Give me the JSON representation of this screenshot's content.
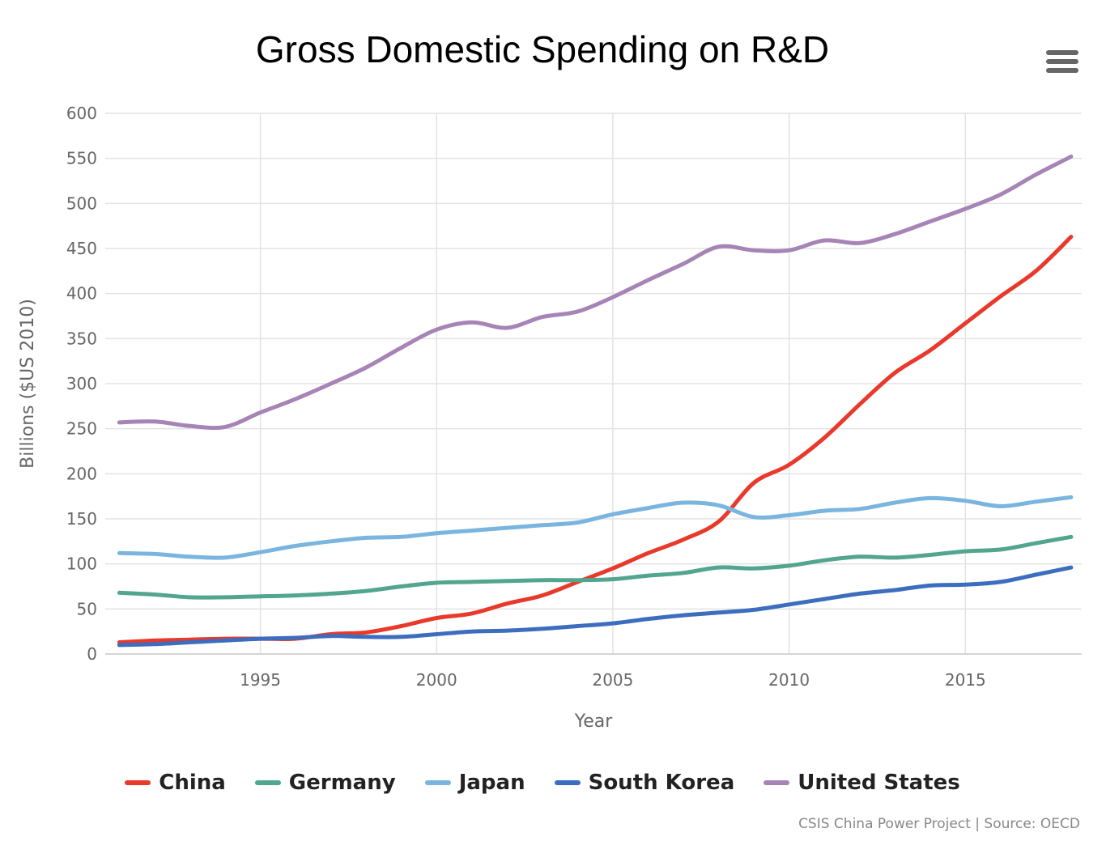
{
  "chart_data": {
    "type": "line",
    "title": "Gross Domestic Spending on R&D",
    "xlabel": "Year",
    "ylabel": "Billions ($US 2010)",
    "x": [
      1991,
      1992,
      1993,
      1994,
      1995,
      1996,
      1997,
      1998,
      1999,
      2000,
      2001,
      2002,
      2003,
      2004,
      2005,
      2006,
      2007,
      2008,
      2009,
      2010,
      2011,
      2012,
      2013,
      2014,
      2015,
      2016,
      2017,
      2018
    ],
    "xlim": [
      1990.6,
      2018.3
    ],
    "ylim": [
      0,
      600
    ],
    "xticks": [
      1995,
      2000,
      2005,
      2010,
      2015
    ],
    "yticks": [
      0,
      50,
      100,
      150,
      200,
      250,
      300,
      350,
      400,
      450,
      500,
      550,
      600
    ],
    "grid": true,
    "legend_position": "bottom",
    "series": [
      {
        "name": "China",
        "color": "#e8392b",
        "values": [
          13,
          15,
          16,
          17,
          17,
          17,
          22,
          24,
          31,
          40,
          45,
          56,
          65,
          80,
          95,
          112,
          127,
          147,
          190,
          210,
          240,
          277,
          312,
          337,
          367,
          397,
          425,
          463
        ]
      },
      {
        "name": "Germany",
        "color": "#52a58e",
        "values": [
          68,
          66,
          63,
          63,
          64,
          65,
          67,
          70,
          75,
          79,
          80,
          81,
          82,
          82,
          83,
          87,
          90,
          96,
          95,
          98,
          104,
          108,
          107,
          110,
          114,
          116,
          123,
          130
        ]
      },
      {
        "name": "Japan",
        "color": "#7ab5df",
        "values": [
          112,
          111,
          108,
          107,
          113,
          120,
          125,
          129,
          130,
          134,
          137,
          140,
          143,
          146,
          155,
          162,
          168,
          165,
          152,
          154,
          159,
          161,
          168,
          173,
          170,
          164,
          169,
          174
        ]
      },
      {
        "name": "South Korea",
        "color": "#3c6dbf",
        "values": [
          10,
          11,
          13,
          15,
          17,
          18,
          20,
          19,
          19,
          22,
          25,
          26,
          28,
          31,
          34,
          39,
          43,
          46,
          49,
          55,
          61,
          67,
          71,
          76,
          77,
          80,
          88,
          96
        ]
      },
      {
        "name": "United States",
        "color": "#a684b5",
        "values": [
          257,
          258,
          253,
          252,
          268,
          283,
          300,
          318,
          340,
          360,
          368,
          362,
          374,
          380,
          396,
          415,
          433,
          452,
          448,
          448,
          459,
          456,
          466,
          480,
          494,
          510,
          532,
          552
        ]
      }
    ]
  },
  "menu": {
    "icon": "hamburger-menu-icon"
  },
  "credits": "CSIS China Power Project | Source: OECD"
}
